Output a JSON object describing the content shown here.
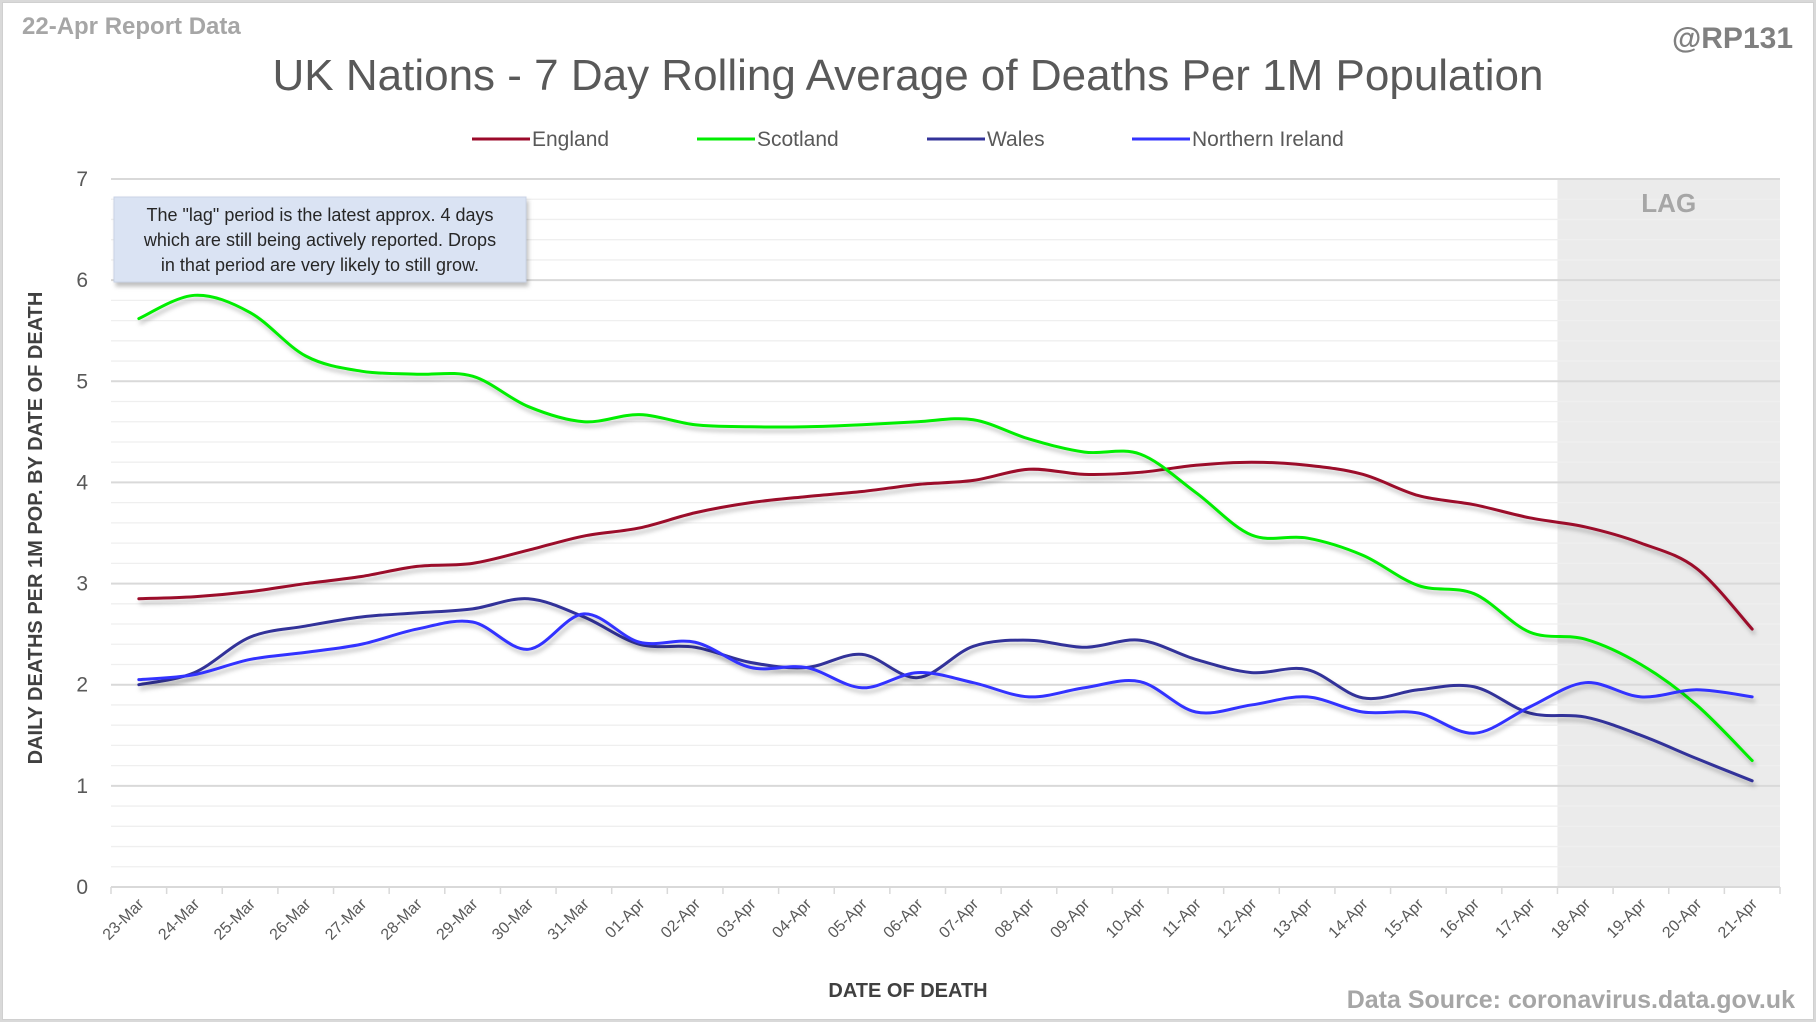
{
  "report_label": "22-Apr Report Data",
  "handle": "@RP131",
  "source": "Data Source: coronavirus.data.gov.uk",
  "lag_label": "LAG",
  "note_lines": [
    "The \"lag\" period is the latest approx. 4 days",
    "which are still being actively reported.  Drops",
    "in that period are very likely to still grow."
  ],
  "chart_data": {
    "type": "line",
    "title": "UK Nations - 7 Day Rolling Average of Deaths Per 1M Population",
    "xlabel": "DATE OF DEATH",
    "ylabel": "DAILY DEATHS PER 1M POP. BY DATE OF DEATH",
    "ylim": [
      0,
      7
    ],
    "yticks": [
      0,
      1,
      2,
      3,
      4,
      5,
      6,
      7
    ],
    "grid": true,
    "legend_position": "top",
    "lag_start_category": "18-Apr",
    "categories": [
      "23-Mar",
      "24-Mar",
      "25-Mar",
      "26-Mar",
      "27-Mar",
      "28-Mar",
      "29-Mar",
      "30-Mar",
      "31-Mar",
      "01-Apr",
      "02-Apr",
      "03-Apr",
      "04-Apr",
      "05-Apr",
      "06-Apr",
      "07-Apr",
      "08-Apr",
      "09-Apr",
      "10-Apr",
      "11-Apr",
      "12-Apr",
      "13-Apr",
      "14-Apr",
      "15-Apr",
      "16-Apr",
      "17-Apr",
      "18-Apr",
      "19-Apr",
      "20-Apr",
      "21-Apr"
    ],
    "series": [
      {
        "name": "England",
        "color": "#9b0a2a",
        "values": [
          2.85,
          2.87,
          2.92,
          3.0,
          3.07,
          3.17,
          3.2,
          3.33,
          3.47,
          3.55,
          3.7,
          3.8,
          3.86,
          3.91,
          3.98,
          4.02,
          4.13,
          4.08,
          4.1,
          4.17,
          4.2,
          4.17,
          4.08,
          3.87,
          3.78,
          3.65,
          3.56,
          3.4,
          3.15,
          2.55
        ]
      },
      {
        "name": "Scotland",
        "color": "#00ee00",
        "values": [
          5.62,
          5.85,
          5.68,
          5.25,
          5.1,
          5.07,
          5.05,
          4.75,
          4.6,
          4.67,
          4.57,
          4.55,
          4.55,
          4.57,
          4.6,
          4.62,
          4.43,
          4.3,
          4.28,
          3.9,
          3.48,
          3.45,
          3.28,
          2.98,
          2.9,
          2.52,
          2.45,
          2.2,
          1.8,
          1.25
        ]
      },
      {
        "name": "Wales",
        "color": "#333399",
        "values": [
          2.0,
          2.12,
          2.47,
          2.58,
          2.67,
          2.71,
          2.75,
          2.85,
          2.67,
          2.4,
          2.37,
          2.22,
          2.17,
          2.3,
          2.07,
          2.38,
          2.44,
          2.37,
          2.44,
          2.25,
          2.12,
          2.15,
          1.87,
          1.95,
          1.98,
          1.72,
          1.68,
          1.5,
          1.27,
          1.05
        ]
      },
      {
        "name": "Northern Ireland",
        "color": "#3333ff",
        "values": [
          2.05,
          2.1,
          2.25,
          2.32,
          2.4,
          2.55,
          2.62,
          2.35,
          2.7,
          2.42,
          2.42,
          2.17,
          2.17,
          1.97,
          2.12,
          2.02,
          1.88,
          1.97,
          2.03,
          1.73,
          1.8,
          1.88,
          1.73,
          1.72,
          1.52,
          1.78,
          2.02,
          1.88,
          1.95,
          1.88
        ]
      }
    ]
  }
}
